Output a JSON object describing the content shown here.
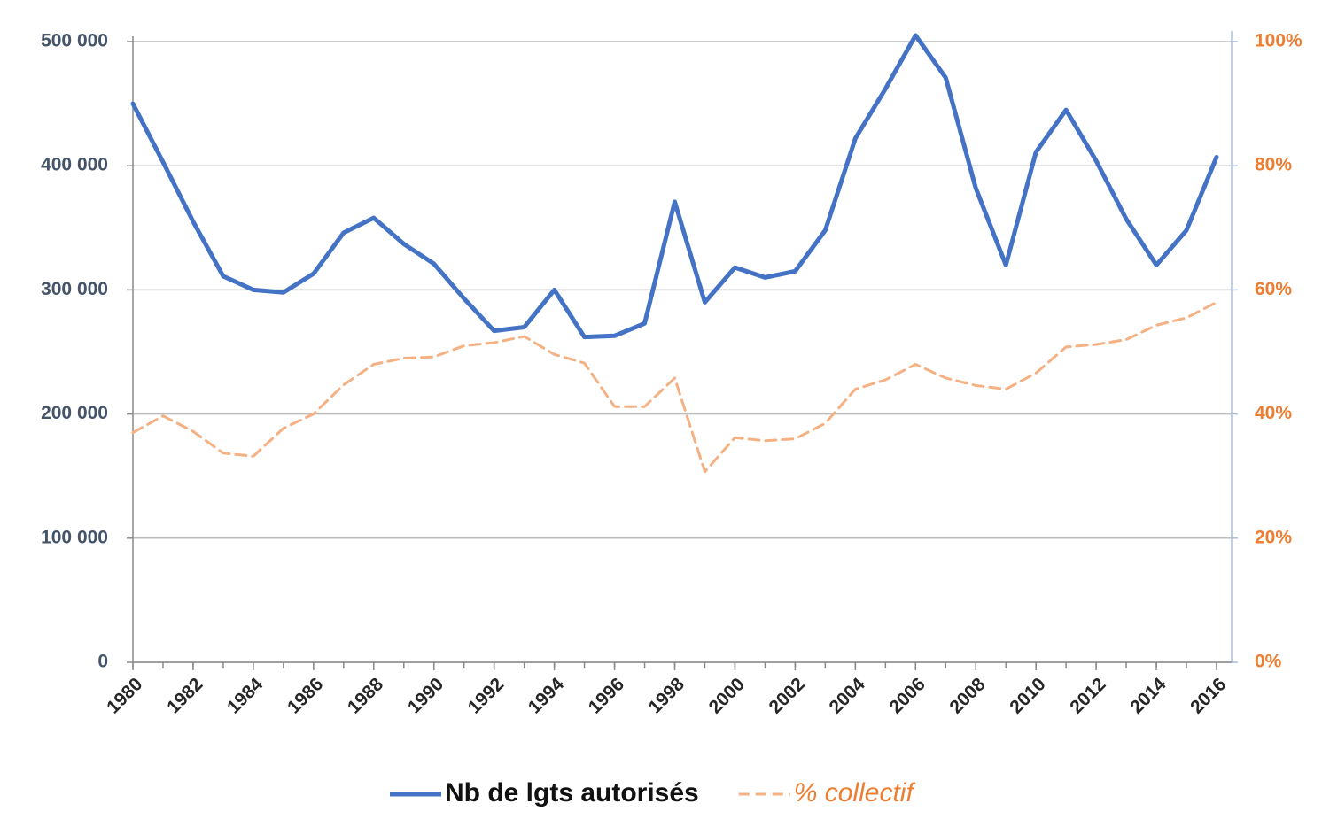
{
  "chart_data": {
    "type": "line",
    "x": [
      1980,
      1981,
      1982,
      1983,
      1984,
      1985,
      1986,
      1987,
      1988,
      1989,
      1990,
      1991,
      1992,
      1993,
      1994,
      1995,
      1996,
      1997,
      1998,
      1999,
      2000,
      2001,
      2002,
      2003,
      2004,
      2005,
      2006,
      2007,
      2008,
      2009,
      2010,
      2011,
      2012,
      2013,
      2014,
      2015,
      2016
    ],
    "xlim": [
      1980,
      2016.5
    ],
    "xticks": [
      1980,
      1982,
      1984,
      1986,
      1988,
      1990,
      1992,
      1994,
      1996,
      1998,
      2000,
      2002,
      2004,
      2006,
      2008,
      2010,
      2012,
      2014,
      2016
    ],
    "ylim": [
      0,
      500000
    ],
    "yticks": [
      0,
      {
        "value": 100000,
        "label": "100 000"
      },
      {
        "value": 200000,
        "label": "200 000"
      },
      {
        "value": 300000,
        "label": "300 000"
      },
      {
        "value": 400000,
        "label": "400 000"
      },
      {
        "value": 500000,
        "label": "500 000"
      }
    ],
    "y2lim": [
      0,
      100
    ],
    "y2ticks": [
      {
        "value": 0,
        "label": "0%"
      },
      {
        "value": 20,
        "label": "20%"
      },
      {
        "value": 40,
        "label": "40%"
      },
      {
        "value": 60,
        "label": "60%"
      },
      {
        "value": 80,
        "label": "80%"
      },
      {
        "value": 100,
        "label": "100%"
      }
    ],
    "grid": true,
    "legend": "bottom",
    "series": [
      {
        "name": "Nb de lgts autorisés",
        "color": "#4472c4",
        "values": [
          450000,
          403000,
          355000,
          311000,
          300000,
          298000,
          313000,
          346000,
          358000,
          337000,
          321000,
          293000,
          267000,
          270000,
          300000,
          262000,
          263000,
          273000,
          371000,
          290000,
          318000,
          310000,
          315000,
          348000,
          422000,
          462000,
          505000,
          471000,
          382000,
          320000,
          411000,
          445000,
          404000,
          357000,
          320000,
          348000,
          407000
        ]
      },
      {
        "name": "% collectif",
        "color": "#f4b183",
        "axis": "y2",
        "dashed": true,
        "values": [
          37,
          39.7,
          37.2,
          33.7,
          33.2,
          37.7,
          40,
          44.7,
          48,
          49,
          49.2,
          51,
          51.5,
          52.5,
          49.6,
          48.2,
          41.2,
          41.2,
          45.8,
          30.7,
          36.2,
          35.7,
          36,
          38.5,
          44,
          45.5,
          48,
          45.8,
          44.6,
          44,
          46.6,
          50.8,
          51.2,
          52,
          54.3,
          55.5,
          58
        ]
      }
    ]
  }
}
